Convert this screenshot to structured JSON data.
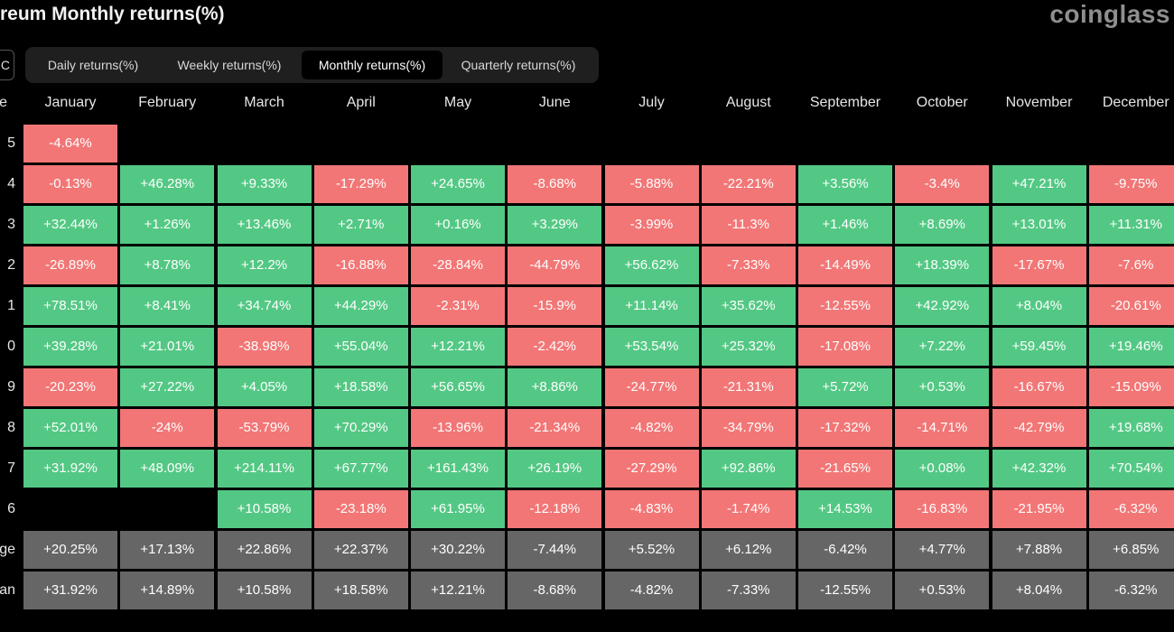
{
  "header": {
    "title": "reum Monthly returns(%)",
    "logo": "coinglass",
    "left_button": "C"
  },
  "tabs": {
    "items": [
      "Daily returns(%)",
      "Weekly returns(%)",
      "Monthly returns(%)",
      "Quarterly returns(%)"
    ],
    "active": 2
  },
  "table": {
    "columns": [
      "e",
      "January",
      "February",
      "March",
      "April",
      "May",
      "June",
      "July",
      "August",
      "September",
      "October",
      "November",
      "December"
    ],
    "rows": [
      {
        "label": "5",
        "cells": [
          "-4.64%",
          null,
          null,
          null,
          null,
          null,
          null,
          null,
          null,
          null,
          null,
          null
        ]
      },
      {
        "label": "4",
        "cells": [
          "-0.13%",
          "+46.28%",
          "+9.33%",
          "-17.29%",
          "+24.65%",
          "-8.68%",
          "-5.88%",
          "-22.21%",
          "+3.56%",
          "-3.4%",
          "+47.21%",
          "-9.75%"
        ]
      },
      {
        "label": "3",
        "cells": [
          "+32.44%",
          "+1.26%",
          "+13.46%",
          "+2.71%",
          "+0.16%",
          "+3.29%",
          "-3.99%",
          "-11.3%",
          "+1.46%",
          "+8.69%",
          "+13.01%",
          "+11.31%"
        ]
      },
      {
        "label": "2",
        "cells": [
          "-26.89%",
          "+8.78%",
          "+12.2%",
          "-16.88%",
          "-28.84%",
          "-44.79%",
          "+56.62%",
          "-7.33%",
          "-14.49%",
          "+18.39%",
          "-17.67%",
          "-7.6%"
        ]
      },
      {
        "label": "1",
        "cells": [
          "+78.51%",
          "+8.41%",
          "+34.74%",
          "+44.29%",
          "-2.31%",
          "-15.9%",
          "+11.14%",
          "+35.62%",
          "-12.55%",
          "+42.92%",
          "+8.04%",
          "-20.61%"
        ]
      },
      {
        "label": "0",
        "cells": [
          "+39.28%",
          "+21.01%",
          "-38.98%",
          "+55.04%",
          "+12.21%",
          "-2.42%",
          "+53.54%",
          "+25.32%",
          "-17.08%",
          "+7.22%",
          "+59.45%",
          "+19.46%"
        ]
      },
      {
        "label": "9",
        "cells": [
          "-20.23%",
          "+27.22%",
          "+4.05%",
          "+18.58%",
          "+56.65%",
          "+8.86%",
          "-24.77%",
          "-21.31%",
          "+5.72%",
          "+0.53%",
          "-16.67%",
          "-15.09%"
        ]
      },
      {
        "label": "8",
        "cells": [
          "+52.01%",
          "-24%",
          "-53.79%",
          "+70.29%",
          "-13.96%",
          "-21.34%",
          "-4.82%",
          "-34.79%",
          "-17.32%",
          "-14.71%",
          "-42.79%",
          "+19.68%"
        ]
      },
      {
        "label": "7",
        "cells": [
          "+31.92%",
          "+48.09%",
          "+214.11%",
          "+67.77%",
          "+161.43%",
          "+26.19%",
          "-27.29%",
          "+92.86%",
          "-21.65%",
          "+0.08%",
          "+42.32%",
          "+70.54%"
        ]
      },
      {
        "label": "6",
        "cells": [
          null,
          null,
          "+10.58%",
          "-23.18%",
          "+61.95%",
          "-12.18%",
          "-4.83%",
          "-1.74%",
          "+14.53%",
          "-16.83%",
          "-21.95%",
          "-6.32%"
        ]
      }
    ],
    "summary_rows": [
      {
        "label": "ge",
        "cells": [
          "+20.25%",
          "+17.13%",
          "+22.86%",
          "+22.37%",
          "+30.22%",
          "-7.44%",
          "+5.52%",
          "+6.12%",
          "-6.42%",
          "+4.77%",
          "+7.88%",
          "+6.85%"
        ]
      },
      {
        "label": "an",
        "cells": [
          "+31.92%",
          "+14.89%",
          "+10.58%",
          "+18.58%",
          "+12.21%",
          "-8.68%",
          "-4.82%",
          "-7.33%",
          "-12.55%",
          "+0.53%",
          "+8.04%",
          "-6.32%"
        ]
      }
    ]
  }
}
